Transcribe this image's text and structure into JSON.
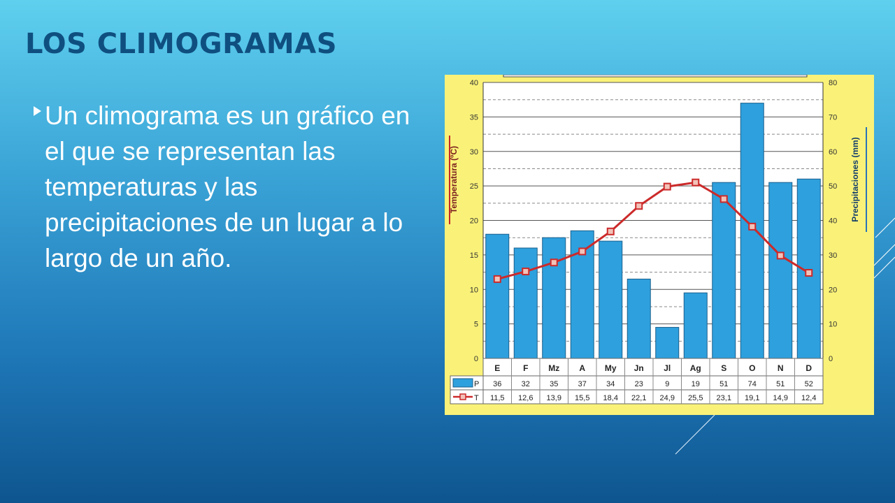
{
  "slide": {
    "title": "LOS CLIMOGRAMAS",
    "bullet": "Un climograma es un gráfico en el que se representan las temperaturas y las precipitaciones de un lugar a lo largo de un año.",
    "bullet_icon": "triangle-bullet-icon"
  },
  "colors": {
    "title": "#0f4f7f",
    "bar": "#2ea0dd",
    "line": "#cc2a2a",
    "panel": "#faf278"
  },
  "chart_data": {
    "type": "bar",
    "categories": [
      "E",
      "F",
      "Mz",
      "A",
      "My",
      "Jn",
      "Jl",
      "Ag",
      "S",
      "O",
      "N",
      "D"
    ],
    "series": [
      {
        "name": "P",
        "type": "bar",
        "axis": "right",
        "values": [
          36,
          32,
          35,
          37,
          34,
          23,
          9,
          19,
          51,
          74,
          51,
          52
        ],
        "labels": [
          "36",
          "32",
          "35",
          "37",
          "34",
          "23",
          "9",
          "19",
          "51",
          "74",
          "51",
          "52"
        ]
      },
      {
        "name": "T",
        "type": "line",
        "axis": "left",
        "values": [
          11.5,
          12.6,
          13.9,
          15.5,
          18.4,
          22.1,
          24.9,
          25.5,
          23.1,
          19.1,
          14.9,
          12.4
        ],
        "labels": [
          "11,5",
          "12,6",
          "13,9",
          "15,5",
          "18,4",
          "22,1",
          "24,9",
          "25,5",
          "23,1",
          "19,1",
          "14,9",
          "12,4"
        ]
      }
    ],
    "ylabel_left": "Temperatura (ºC)",
    "ylabel_right": "Precipitaciones (mm)",
    "ylim_left": [
      0,
      40
    ],
    "ylim_right": [
      0,
      80
    ],
    "yticks_left": [
      "0",
      "5",
      "10",
      "15",
      "20",
      "25",
      "30",
      "35",
      "40"
    ],
    "yticks_right": [
      "0",
      "10",
      "20",
      "30",
      "40",
      "50",
      "60",
      "70",
      "80"
    ],
    "grid": true,
    "legend": "bottom table"
  }
}
